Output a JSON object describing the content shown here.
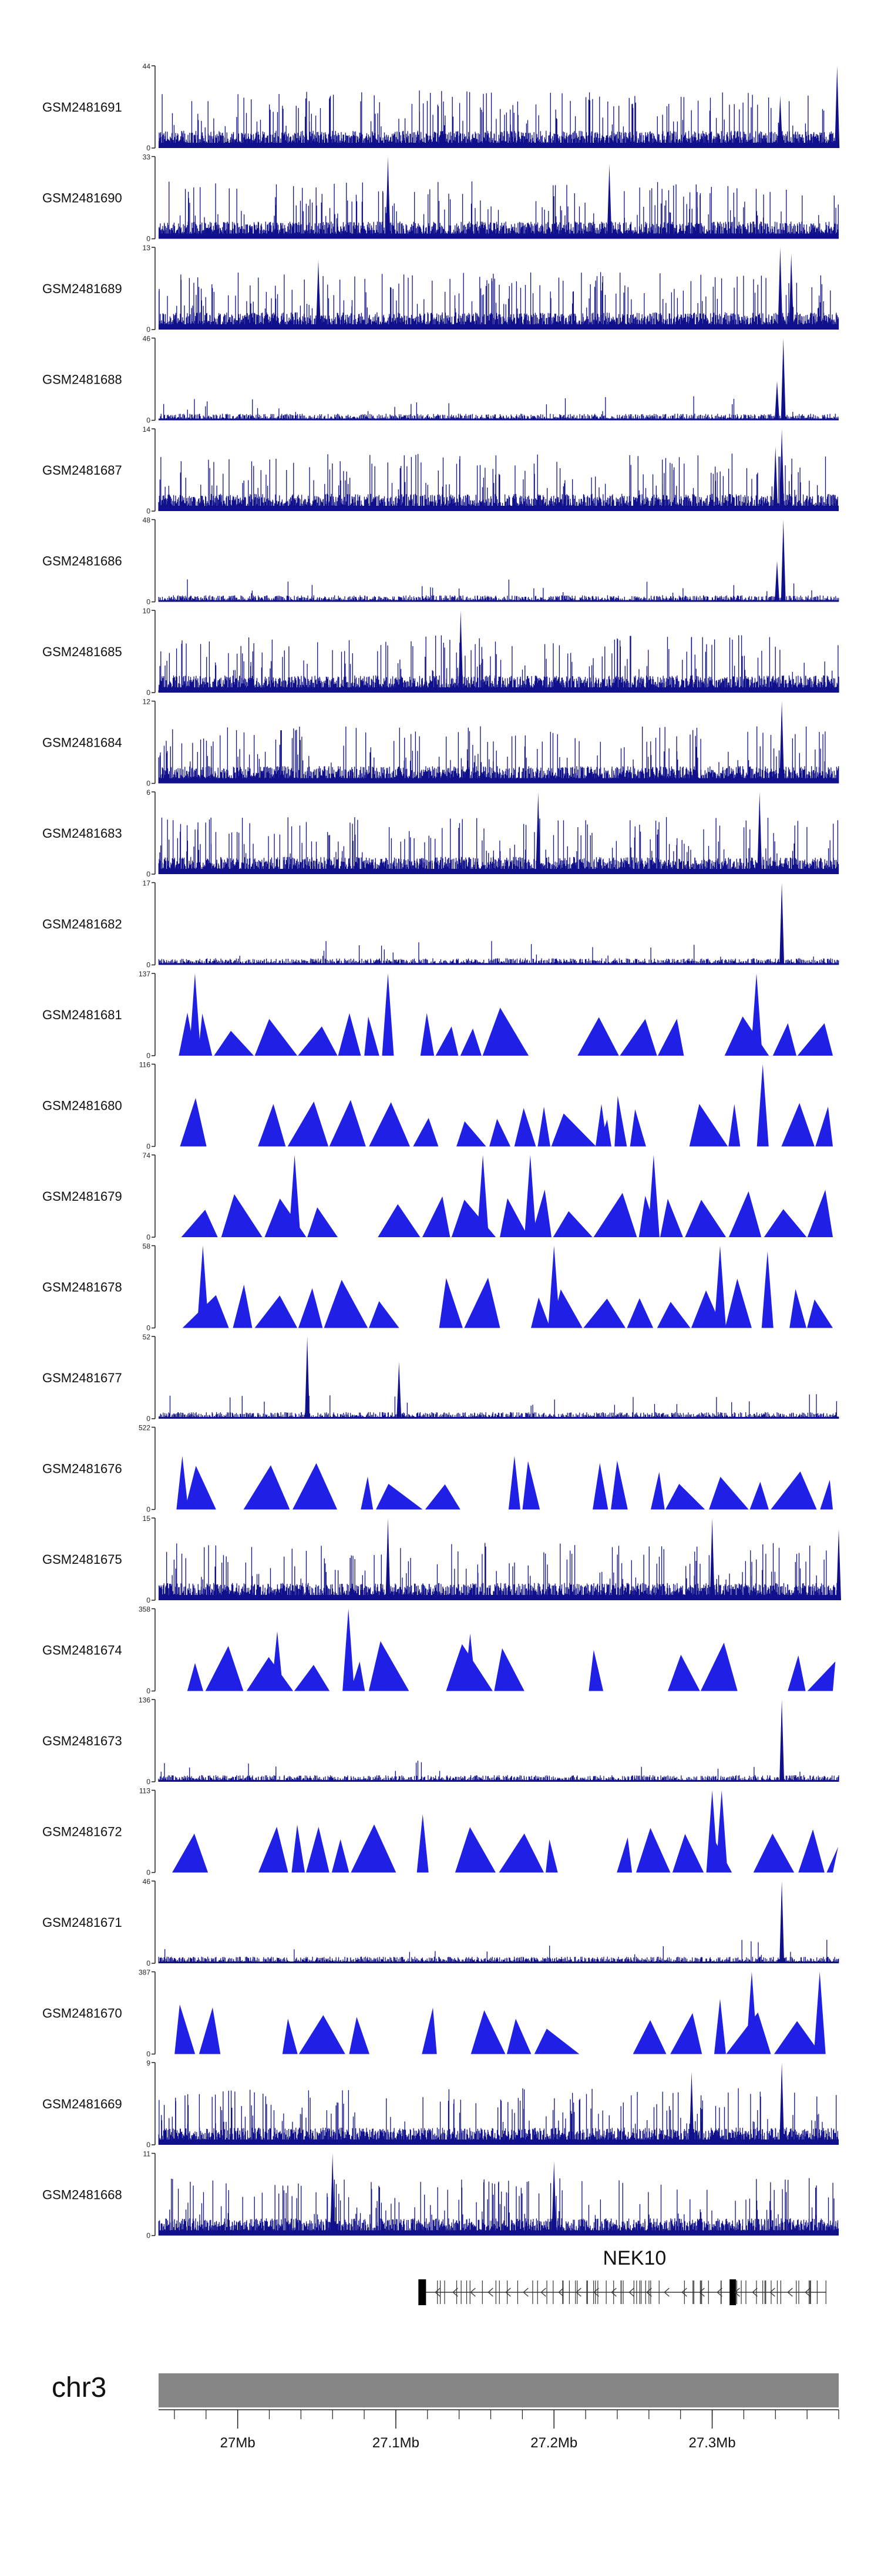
{
  "colors": {
    "fill": "#1f1fe6",
    "dense": "#10108c",
    "axis": "#222222",
    "gene": "#333333",
    "chrom_bar": "#868686"
  },
  "chart_data": {
    "type": "area",
    "title": "",
    "x_unit": "Mb",
    "x_range": [
      26.95,
      27.38
    ],
    "x_ticks": [
      "27Mb",
      "27.1Mb",
      "27.2Mb",
      "27.3Mb"
    ],
    "chromosome": "chr3",
    "gene": {
      "name": "NEK10",
      "strand": "-",
      "start": 27.115,
      "end": 27.372
    },
    "tracks": [
      {
        "name": "GSM2481691",
        "ymax": "44",
        "ylim": [
          0,
          44
        ],
        "style": "dense",
        "peaks": [
          {
            "x": 27.343,
            "y": 28
          },
          {
            "x": 27.379,
            "y": 44
          }
        ]
      },
      {
        "name": "GSM2481690",
        "ymax": "33",
        "ylim": [
          0,
          33
        ],
        "style": "dense",
        "peaks": [
          {
            "x": 27.095,
            "y": 33
          },
          {
            "x": 27.235,
            "y": 30
          }
        ]
      },
      {
        "name": "GSM2481689",
        "ymax": "13",
        "ylim": [
          0,
          13
        ],
        "style": "dense",
        "peaks": [
          {
            "x": 27.051,
            "y": 11
          },
          {
            "x": 27.343,
            "y": 13
          },
          {
            "x": 27.35,
            "y": 12
          }
        ]
      },
      {
        "name": "GSM2481688",
        "ymax": "46",
        "ylim": [
          0,
          46
        ],
        "style": "sparse",
        "peaks": [
          {
            "x": 27.345,
            "y": 46
          },
          {
            "x": 27.341,
            "y": 22
          }
        ]
      },
      {
        "name": "GSM2481687",
        "ymax": "14",
        "ylim": [
          0,
          14
        ],
        "style": "dense",
        "peaks": [
          {
            "x": 27.344,
            "y": 14
          },
          {
            "x": 27.34,
            "y": 11
          }
        ]
      },
      {
        "name": "GSM2481686",
        "ymax": "48",
        "ylim": [
          0,
          48
        ],
        "style": "sparse",
        "peaks": [
          {
            "x": 27.345,
            "y": 48
          },
          {
            "x": 27.341,
            "y": 24
          }
        ]
      },
      {
        "name": "GSM2481685",
        "ymax": "10",
        "ylim": [
          0,
          10
        ],
        "style": "dense",
        "peaks": [
          {
            "x": 27.141,
            "y": 10
          }
        ]
      },
      {
        "name": "GSM2481684",
        "ymax": "12",
        "ylim": [
          0,
          12
        ],
        "style": "dense",
        "peaks": [
          {
            "x": 27.344,
            "y": 12
          }
        ]
      },
      {
        "name": "GSM2481683",
        "ymax": "6",
        "ylim": [
          0,
          6
        ],
        "style": "dense",
        "peaks": [
          {
            "x": 27.19,
            "y": 6
          },
          {
            "x": 27.33,
            "y": 6
          }
        ]
      },
      {
        "name": "GSM2481682",
        "ymax": "17",
        "ylim": [
          0,
          17
        ],
        "style": "sparse",
        "peaks": [
          {
            "x": 27.344,
            "y": 17
          }
        ]
      },
      {
        "name": "GSM2481681",
        "ymax": "137",
        "ylim": [
          0,
          137
        ],
        "style": "tri",
        "peaks": [
          {
            "x": 26.973,
            "y": 137
          },
          {
            "x": 27.095,
            "y": 137
          },
          {
            "x": 27.328,
            "y": 137
          }
        ]
      },
      {
        "name": "GSM2481680",
        "ymax": "116",
        "ylim": [
          0,
          116
        ],
        "style": "tri",
        "peaks": [
          {
            "x": 27.332,
            "y": 116
          },
          {
            "x": 27.23,
            "y": 60
          },
          {
            "x": 27.314,
            "y": 60
          }
        ]
      },
      {
        "name": "GSM2481679",
        "ymax": "74",
        "ylim": [
          0,
          74
        ],
        "style": "tri",
        "peaks": [
          {
            "x": 27.036,
            "y": 74
          },
          {
            "x": 27.155,
            "y": 74
          },
          {
            "x": 27.185,
            "y": 74
          },
          {
            "x": 27.263,
            "y": 74
          }
        ]
      },
      {
        "name": "GSM2481678",
        "ymax": "58",
        "ylim": [
          0,
          58
        ],
        "style": "tri",
        "peaks": [
          {
            "x": 26.978,
            "y": 58
          },
          {
            "x": 27.2,
            "y": 58
          },
          {
            "x": 27.305,
            "y": 58
          },
          {
            "x": 27.335,
            "y": 54
          }
        ]
      },
      {
        "name": "GSM2481677",
        "ymax": "52",
        "ylim": [
          0,
          52
        ],
        "style": "sparse",
        "peaks": [
          {
            "x": 27.044,
            "y": 52
          },
          {
            "x": 27.102,
            "y": 36
          }
        ]
      },
      {
        "name": "GSM2481676",
        "ymax": "522",
        "ylim": [
          0,
          522
        ],
        "style": "tri",
        "peaks": [
          {
            "x": 27.175,
            "y": 340
          },
          {
            "x": 26.965,
            "y": 340
          }
        ]
      },
      {
        "name": "GSM2481675",
        "ymax": "15",
        "ylim": [
          0,
          15
        ],
        "style": "dense",
        "peaks": [
          {
            "x": 27.095,
            "y": 15
          },
          {
            "x": 27.3,
            "y": 15
          },
          {
            "x": 27.38,
            "y": 13
          }
        ]
      },
      {
        "name": "GSM2481674",
        "ymax": "358",
        "ylim": [
          0,
          358
        ],
        "style": "tri",
        "peaks": [
          {
            "x": 27.07,
            "y": 358
          },
          {
            "x": 27.025,
            "y": 260
          },
          {
            "x": 27.147,
            "y": 250
          }
        ]
      },
      {
        "name": "GSM2481673",
        "ymax": "136",
        "ylim": [
          0,
          136
        ],
        "style": "sparse",
        "peaks": [
          {
            "x": 27.344,
            "y": 136
          }
        ]
      },
      {
        "name": "GSM2481672",
        "ymax": "113",
        "ylim": [
          0,
          113
        ],
        "style": "tri",
        "peaks": [
          {
            "x": 27.3,
            "y": 113
          },
          {
            "x": 27.306,
            "y": 113
          },
          {
            "x": 27.117,
            "y": 80
          }
        ]
      },
      {
        "name": "GSM2481671",
        "ymax": "46",
        "ylim": [
          0,
          46
        ],
        "style": "sparse",
        "peaks": [
          {
            "x": 27.344,
            "y": 46
          }
        ]
      },
      {
        "name": "GSM2481670",
        "ymax": "387",
        "ylim": [
          0,
          387
        ],
        "style": "tri",
        "peaks": [
          {
            "x": 27.325,
            "y": 387
          },
          {
            "x": 27.368,
            "y": 387
          },
          {
            "x": 27.305,
            "y": 260
          }
        ]
      },
      {
        "name": "GSM2481669",
        "ymax": "9",
        "ylim": [
          0,
          9
        ],
        "style": "dense",
        "peaks": [
          {
            "x": 27.344,
            "y": 9
          },
          {
            "x": 27.287,
            "y": 8
          }
        ]
      },
      {
        "name": "GSM2481668",
        "ymax": "11",
        "ylim": [
          0,
          11
        ],
        "style": "dense",
        "peaks": [
          {
            "x": 27.06,
            "y": 11
          },
          {
            "x": 27.2,
            "y": 10
          }
        ]
      }
    ]
  }
}
